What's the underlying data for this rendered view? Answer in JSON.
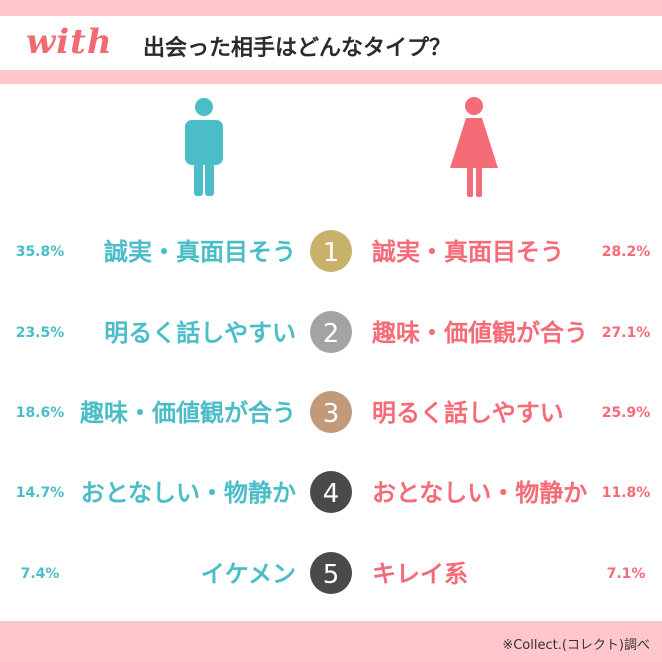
{
  "header": {
    "logo": "with",
    "title": "出会った相手はどんなタイプ？"
  },
  "footer": {
    "source": "※Collect.(コレクト)調べ"
  },
  "colors": {
    "male": "#4bbdc8",
    "female": "#f56b78",
    "band": "#ffc7cb",
    "rank": [
      "#c8b26a",
      "#a3a3a3",
      "#c09a7b",
      "#4a4a4a",
      "#4a4a4a"
    ]
  },
  "icons": {
    "male": "man-icon",
    "female": "woman-icon"
  },
  "chart_data": {
    "type": "table",
    "ranks": [
      "1",
      "2",
      "3",
      "4",
      "5"
    ],
    "series": [
      {
        "labels": [
          "誠実・真面目そう",
          "明るく話しやすい",
          "趣味・価値観が合う",
          "おとなしい・物静か",
          "イケメン"
        ],
        "values": [
          "35.8%",
          "23.5%",
          "18.6%",
          "14.7%",
          "7.4%"
        ]
      },
      {
        "labels": [
          "誠実・真面目そう",
          "趣味・価値観が合う",
          "明るく話しやすい",
          "おとなしい・物静か",
          "キレイ系"
        ],
        "values": [
          "28.2%",
          "27.1%",
          "25.9%",
          "11.8%",
          "7.1%"
        ]
      }
    ]
  }
}
